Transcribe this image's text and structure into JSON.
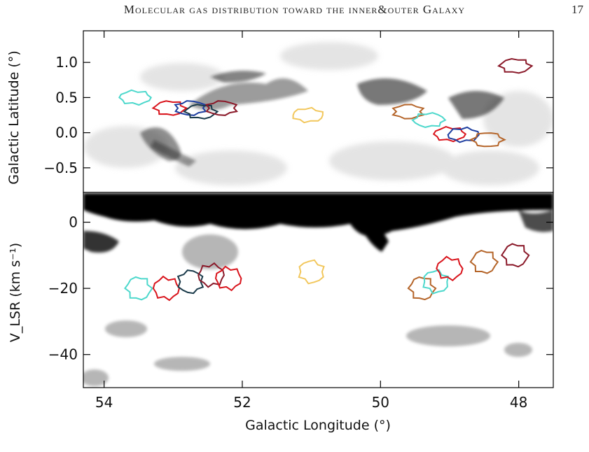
{
  "header": {
    "running_title": "Molecular gas distribution toward the inner&outer Galaxy",
    "page_number": "17"
  },
  "colors": {
    "contours": [
      "#4dd8cc",
      "#d9141c",
      "#1f3fa0",
      "#1a3a4a",
      "#8b1a2a",
      "#f2c75c",
      "#b5652a",
      "#18a09a"
    ],
    "background_gas": "#000000"
  },
  "chart_data": [
    {
      "type": "heatmap",
      "panel": "top",
      "title": "",
      "xlabel": "",
      "ylabel": "Galactic Latitude (°)",
      "xlim": [
        54.3,
        47.5
      ],
      "ylim": [
        -0.85,
        1.45
      ],
      "yticks": [
        "−0.5",
        "0.0",
        "0.5",
        "1.0"
      ],
      "ytick_values": [
        -0.5,
        0.0,
        0.5,
        1.0
      ],
      "contour_regions": [
        {
          "l": 53.55,
          "b": 0.5,
          "color": "#4dd8cc"
        },
        {
          "l": 53.05,
          "b": 0.35,
          "color": "#d9141c"
        },
        {
          "l": 52.75,
          "b": 0.35,
          "color": "#1f3fa0"
        },
        {
          "l": 52.6,
          "b": 0.3,
          "color": "#1a3a4a"
        },
        {
          "l": 52.3,
          "b": 0.35,
          "color": "#8b1a2a"
        },
        {
          "l": 51.05,
          "b": 0.25,
          "color": "#f2c75c"
        },
        {
          "l": 49.6,
          "b": 0.3,
          "color": "#b5652a"
        },
        {
          "l": 49.3,
          "b": 0.18,
          "color": "#4dd8cc"
        },
        {
          "l": 49.0,
          "b": -0.02,
          "color": "#d9141c"
        },
        {
          "l": 48.8,
          "b": -0.03,
          "color": "#1f3fa0"
        },
        {
          "l": 48.45,
          "b": -0.1,
          "color": "#b5652a"
        },
        {
          "l": 48.05,
          "b": 0.95,
          "color": "#8b1a2a"
        }
      ]
    },
    {
      "type": "heatmap",
      "panel": "bottom",
      "title": "",
      "xlabel": "Galactic Longitude (°)",
      "ylabel": "V_LSR (km s⁻¹)",
      "xlim": [
        54.3,
        47.5
      ],
      "ylim": [
        -50,
        9
      ],
      "xticks": [
        "54",
        "52",
        "50",
        "48"
      ],
      "xtick_values": [
        54,
        52,
        50,
        48
      ],
      "yticks": [
        "−40",
        "−20",
        "0"
      ],
      "ytick_values": [
        -40,
        -20,
        0
      ],
      "contour_regions": [
        {
          "l": 53.5,
          "v": -20,
          "color": "#4dd8cc"
        },
        {
          "l": 53.1,
          "v": -20,
          "color": "#d9141c"
        },
        {
          "l": 52.75,
          "v": -18,
          "color": "#1a3a4a"
        },
        {
          "l": 52.45,
          "v": -16,
          "color": "#8b1a2a"
        },
        {
          "l": 52.2,
          "v": -17,
          "color": "#d9141c"
        },
        {
          "l": 51.0,
          "v": -15,
          "color": "#f2c75c"
        },
        {
          "l": 49.4,
          "v": -20,
          "color": "#b5652a"
        },
        {
          "l": 49.2,
          "v": -18,
          "color": "#4dd8cc"
        },
        {
          "l": 49.0,
          "v": -14,
          "color": "#d9141c"
        },
        {
          "l": 48.5,
          "v": -12,
          "color": "#b5652a"
        },
        {
          "l": 48.05,
          "v": -10,
          "color": "#8b1a2a"
        }
      ]
    }
  ]
}
